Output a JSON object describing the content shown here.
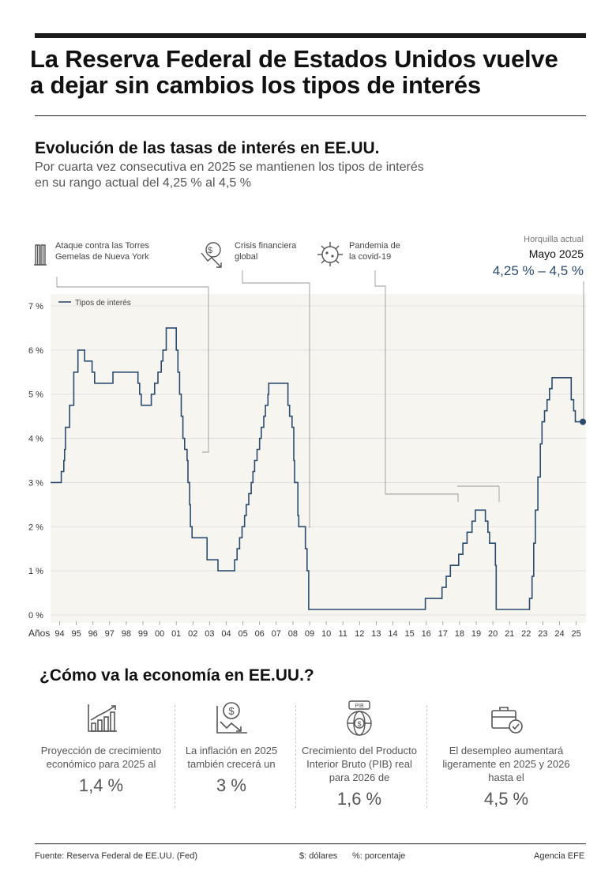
{
  "headline": {
    "line1": "La Reserva Federal de Estados Unidos vuelve",
    "line2": "a dejar sin cambios los tipos de interés"
  },
  "chart_section": {
    "title": "Evolución de las tasas de interés en EE.UU.",
    "desc_line1": "Por cuarta vez consecutiva en 2025 se mantienen los tipos de interés",
    "desc_line2": "en su rango actual del 4,25 % al 4,5 %"
  },
  "annotations": [
    {
      "line1": "Ataque contra las Torres",
      "line2": "Gemelas de Nueva York",
      "icon": "twin-towers-icon",
      "year": 2001.7
    },
    {
      "line1": "Crisis financiera",
      "line2": "global",
      "icon": "falling-dollar-icon",
      "year": 2008.2
    },
    {
      "line1": "Pandemia de",
      "line2": "la covid-19",
      "icon": "virus-icon",
      "year": 2020.2
    }
  ],
  "current": {
    "label": "Horquilla actual",
    "date": "Mayo 2025",
    "range": "4,25 % – 4,5 %"
  },
  "chart_data": {
    "type": "line",
    "title": "Evolución de las tasas de interés en EE.UU.",
    "xlabel": "Años",
    "ylabel": "",
    "legend": "Tipos de interés",
    "legend_position": "top-left",
    "xlim": [
      1993.0,
      2025.6
    ],
    "ylim": [
      0,
      7
    ],
    "y_ticks": [
      {
        "v": 0,
        "label": "0 %"
      },
      {
        "v": 1,
        "label": "1 %"
      },
      {
        "v": 2,
        "label": "2 %"
      },
      {
        "v": 3,
        "label": "3 %"
      },
      {
        "v": 4,
        "label": "4 %"
      },
      {
        "v": 5,
        "label": "5 %"
      },
      {
        "v": 6,
        "label": "6 %"
      },
      {
        "v": 7,
        "label": "7 %"
      }
    ],
    "x_ticks": [
      "94",
      "95",
      "96",
      "97",
      "98",
      "99",
      "00",
      "01",
      "02",
      "03",
      "04",
      "05",
      "06",
      "07",
      "08",
      "09",
      "10",
      "11",
      "12",
      "13",
      "14",
      "15",
      "16",
      "17",
      "18",
      "19",
      "20",
      "21",
      "22",
      "23",
      "24",
      "25"
    ],
    "series": [
      {
        "name": "Tipos de interés",
        "color": "#2b4b6e",
        "points": [
          [
            1993.0,
            3.0
          ],
          [
            1994.1,
            3.25
          ],
          [
            1994.25,
            3.5
          ],
          [
            1994.3,
            3.75
          ],
          [
            1994.35,
            4.25
          ],
          [
            1994.6,
            4.75
          ],
          [
            1994.85,
            5.5
          ],
          [
            1995.1,
            6.0
          ],
          [
            1995.5,
            5.75
          ],
          [
            1995.95,
            5.5
          ],
          [
            1996.1,
            5.25
          ],
          [
            1997.2,
            5.5
          ],
          [
            1998.7,
            5.25
          ],
          [
            1998.8,
            5.0
          ],
          [
            1998.9,
            4.75
          ],
          [
            1999.5,
            5.0
          ],
          [
            1999.7,
            5.25
          ],
          [
            1999.9,
            5.5
          ],
          [
            2000.1,
            5.75
          ],
          [
            2000.2,
            6.0
          ],
          [
            2000.4,
            6.5
          ],
          [
            2001.0,
            6.0
          ],
          [
            2001.1,
            5.5
          ],
          [
            2001.2,
            5.0
          ],
          [
            2001.3,
            4.5
          ],
          [
            2001.4,
            4.0
          ],
          [
            2001.5,
            3.75
          ],
          [
            2001.65,
            3.5
          ],
          [
            2001.7,
            3.0
          ],
          [
            2001.8,
            2.5
          ],
          [
            2001.85,
            2.0
          ],
          [
            2001.95,
            1.75
          ],
          [
            2002.85,
            1.25
          ],
          [
            2003.5,
            1.0
          ],
          [
            2004.5,
            1.25
          ],
          [
            2004.65,
            1.5
          ],
          [
            2004.8,
            1.75
          ],
          [
            2004.95,
            2.0
          ],
          [
            2005.1,
            2.25
          ],
          [
            2005.2,
            2.5
          ],
          [
            2005.35,
            2.75
          ],
          [
            2005.5,
            3.0
          ],
          [
            2005.6,
            3.25
          ],
          [
            2005.7,
            3.5
          ],
          [
            2005.85,
            3.75
          ],
          [
            2006.0,
            4.0
          ],
          [
            2006.1,
            4.25
          ],
          [
            2006.25,
            4.5
          ],
          [
            2006.35,
            4.75
          ],
          [
            2006.5,
            5.0
          ],
          [
            2006.55,
            5.25
          ],
          [
            2007.7,
            4.75
          ],
          [
            2007.8,
            4.5
          ],
          [
            2007.95,
            4.25
          ],
          [
            2008.05,
            3.5
          ],
          [
            2008.1,
            3.0
          ],
          [
            2008.3,
            2.25
          ],
          [
            2008.35,
            2.0
          ],
          [
            2008.75,
            1.5
          ],
          [
            2008.85,
            1.0
          ],
          [
            2008.95,
            0.125
          ],
          [
            2015.95,
            0.375
          ],
          [
            2016.95,
            0.625
          ],
          [
            2017.2,
            0.875
          ],
          [
            2017.45,
            1.125
          ],
          [
            2017.95,
            1.375
          ],
          [
            2018.2,
            1.625
          ],
          [
            2018.45,
            1.875
          ],
          [
            2018.75,
            2.125
          ],
          [
            2018.95,
            2.375
          ],
          [
            2019.55,
            2.125
          ],
          [
            2019.7,
            1.875
          ],
          [
            2019.8,
            1.625
          ],
          [
            2020.15,
            1.125
          ],
          [
            2020.2,
            0.125
          ],
          [
            2022.2,
            0.375
          ],
          [
            2022.35,
            0.875
          ],
          [
            2022.45,
            1.625
          ],
          [
            2022.55,
            2.375
          ],
          [
            2022.7,
            3.125
          ],
          [
            2022.85,
            3.875
          ],
          [
            2022.95,
            4.375
          ],
          [
            2023.1,
            4.625
          ],
          [
            2023.25,
            4.875
          ],
          [
            2023.4,
            5.125
          ],
          [
            2023.55,
            5.375
          ],
          [
            2024.7,
            4.875
          ],
          [
            2024.85,
            4.625
          ],
          [
            2024.95,
            4.375
          ],
          [
            2025.4,
            4.375
          ]
        ]
      }
    ],
    "endpoint": {
      "year": 2025.4,
      "value": 4.375
    }
  },
  "economy": {
    "title": "¿Cómo va la economía en EE.UU.?",
    "items": [
      {
        "icon": "growth-chart-icon",
        "lines": [
          "Proyección de crecimiento",
          "económico para 2025 al"
        ],
        "value": "1,4 %"
      },
      {
        "icon": "inflation-dollar-icon",
        "lines": [
          "La inflación en 2025",
          "también crecerá un"
        ],
        "value": "3 %"
      },
      {
        "icon": "pib-globe-icon",
        "icon_text": "PIB",
        "lines": [
          "Crecimiento del Producto",
          "Interior Bruto (PIB) real",
          "para 2026 de"
        ],
        "value": "1,6 %"
      },
      {
        "icon": "briefcase-icon",
        "lines": [
          "El desempleo aumentará",
          "ligeramente en 2025 y 2026",
          "hasta el"
        ],
        "value": "4,5 %"
      }
    ]
  },
  "footer": {
    "source": "Fuente: Reserva Federal de EE.UU. (Fed)",
    "legend_dollar": "$: dólares",
    "legend_percent": "%: porcentaje",
    "agency": "Agencia EFE"
  },
  "colors": {
    "line": "#2b4b6e",
    "plot_bg": "#f7f5ef",
    "accent_text": "#2b4b6e"
  }
}
